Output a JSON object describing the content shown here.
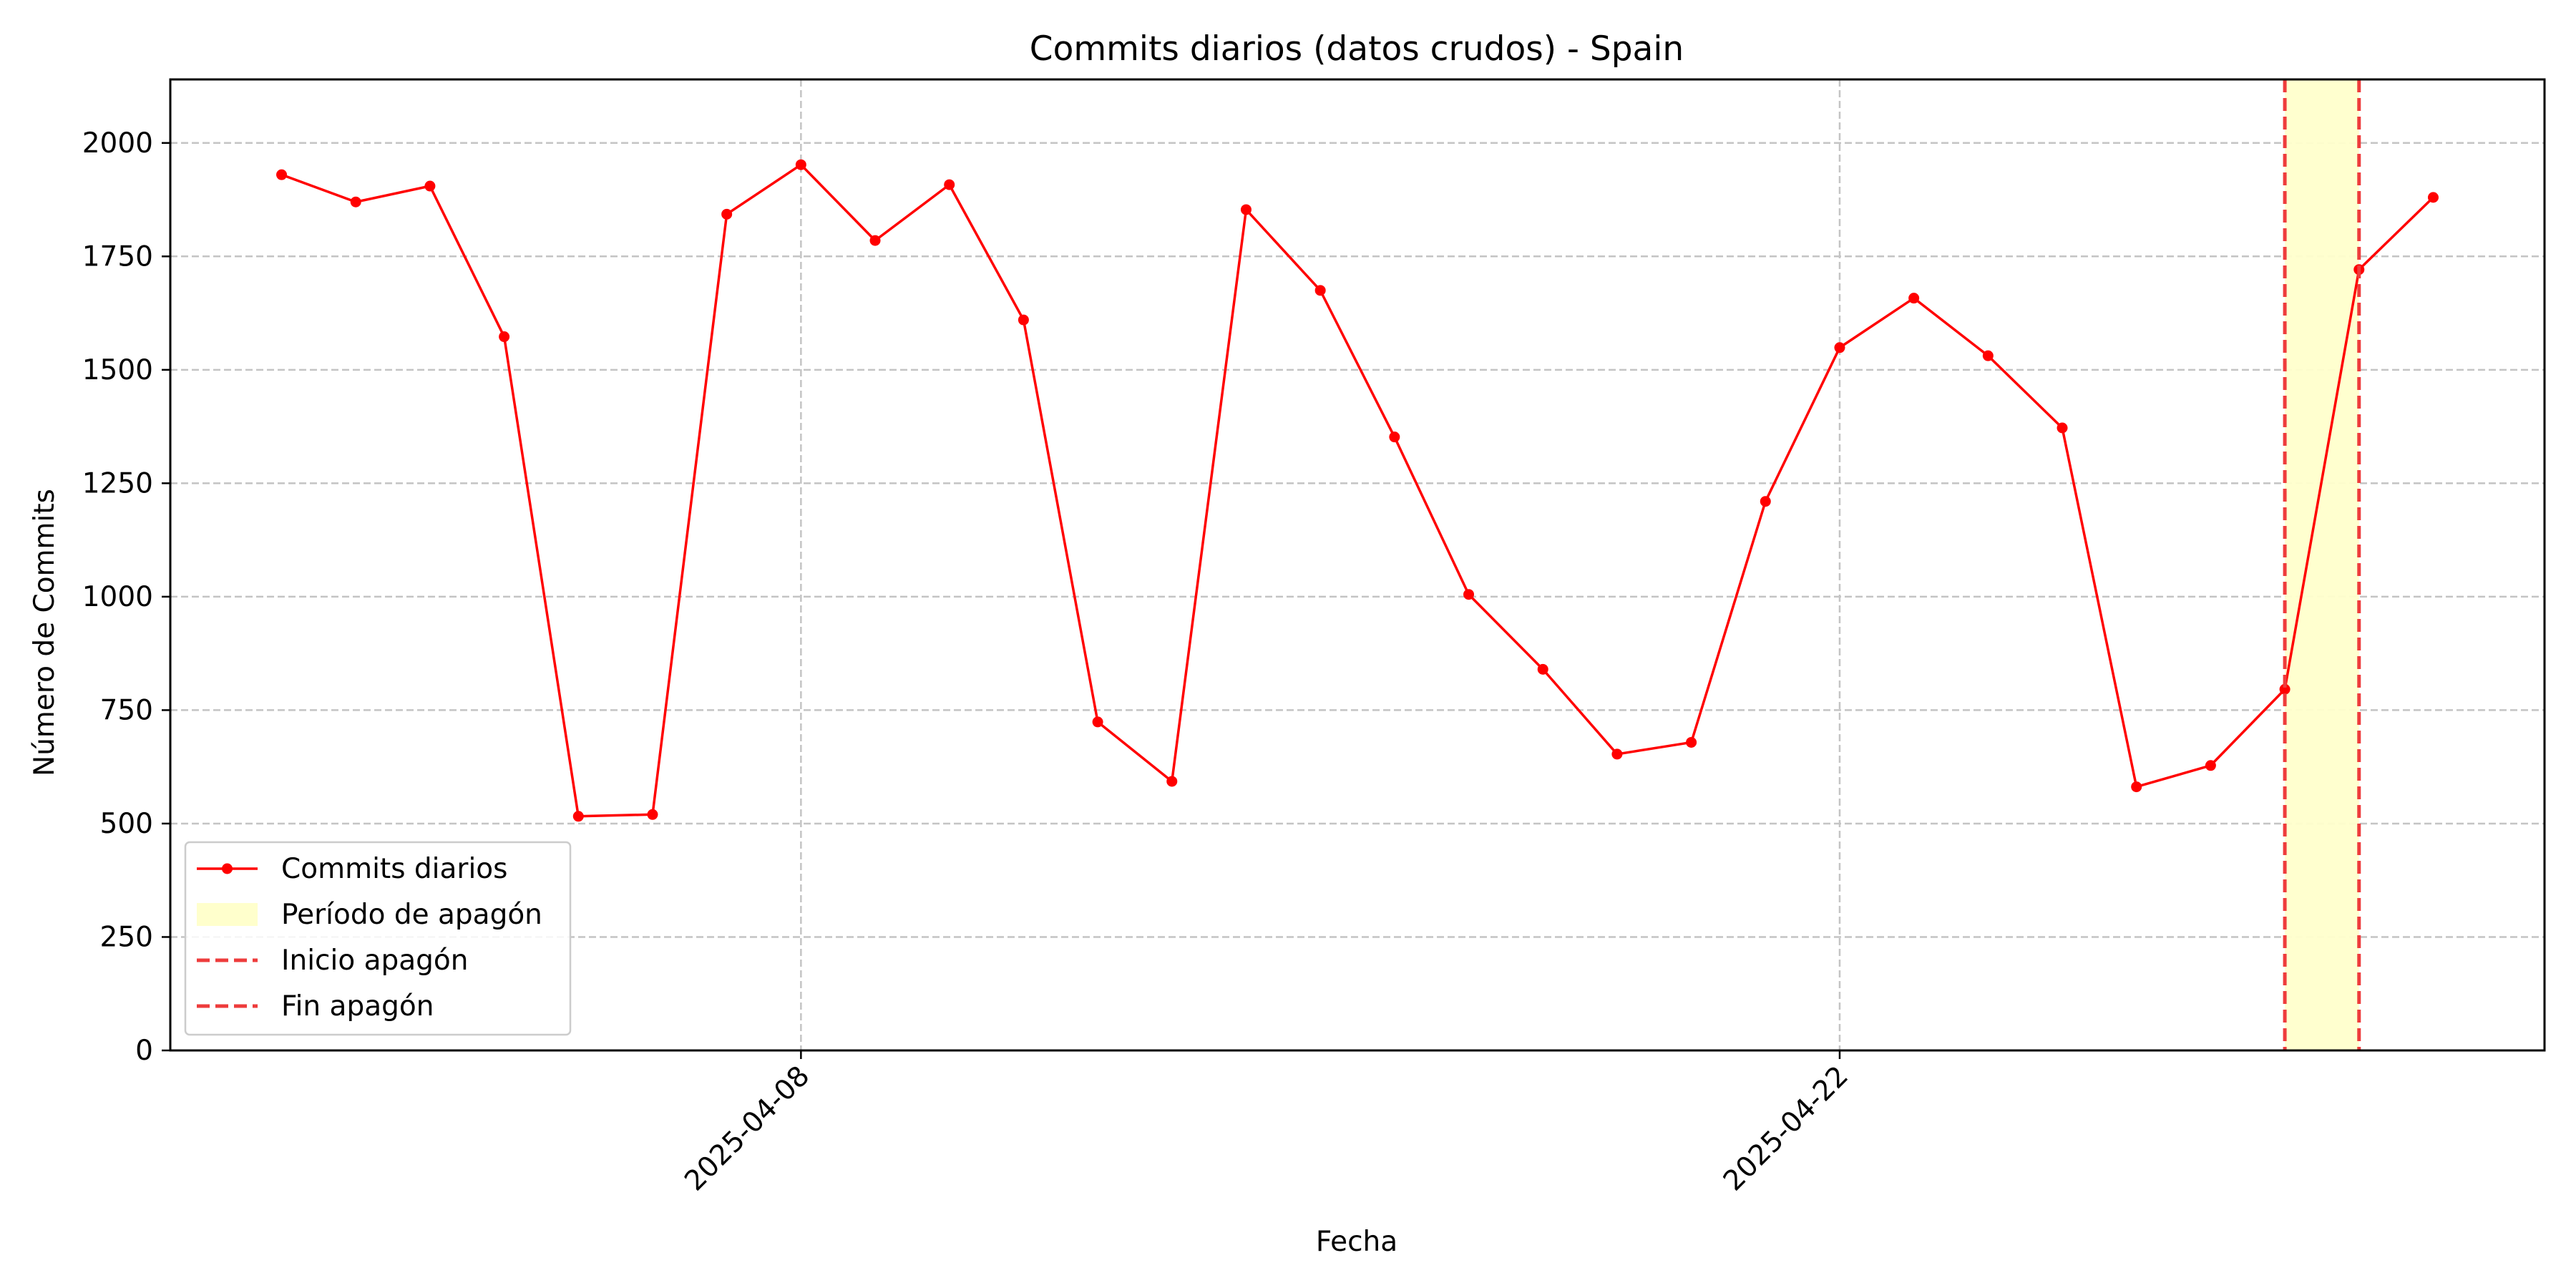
{
  "chart_data": {
    "type": "line",
    "title": "Commits diarios (datos crudos) - Spain",
    "xlabel": "Fecha",
    "ylabel": "Número de Commits",
    "x_start": "2025-04-01",
    "x": [
      "2025-04-01",
      "2025-04-02",
      "2025-04-03",
      "2025-04-04",
      "2025-04-05",
      "2025-04-06",
      "2025-04-07",
      "2025-04-08",
      "2025-04-09",
      "2025-04-10",
      "2025-04-11",
      "2025-04-12",
      "2025-04-13",
      "2025-04-14",
      "2025-04-15",
      "2025-04-16",
      "2025-04-17",
      "2025-04-18",
      "2025-04-19",
      "2025-04-20",
      "2025-04-21",
      "2025-04-22",
      "2025-04-23",
      "2025-04-24",
      "2025-04-25",
      "2025-04-26",
      "2025-04-27",
      "2025-04-28",
      "2025-04-29",
      "2025-04-30"
    ],
    "xlim": [
      "2025-03-30T12:00",
      "2025-05-01T12:00"
    ],
    "x_ticks": [
      "2025-04-08",
      "2025-04-22"
    ],
    "y_ticks": [
      0,
      250,
      500,
      750,
      1000,
      1250,
      1500,
      1750,
      2000
    ],
    "ylim": [
      0,
      2140
    ],
    "grid": true,
    "series": [
      {
        "name": "Commits diarios",
        "color": "#ff0000",
        "values": [
          1930,
          1870,
          1905,
          1573,
          516,
          520,
          1843,
          1952,
          1785,
          1908,
          1610,
          724,
          593,
          1853,
          1675,
          1352,
          1005,
          840,
          653,
          679,
          1210,
          1549,
          1658,
          1531,
          1372,
          581,
          628,
          796,
          1721,
          1880
        ]
      }
    ],
    "highlight": {
      "name": "Período de apagón",
      "start": "2025-04-28",
      "end": "2025-04-29",
      "fill": "#ffffcc"
    },
    "markers": [
      {
        "name": "Inicio apagón",
        "x": "2025-04-28",
        "color": "#ee3c3c"
      },
      {
        "name": "Fin apagón",
        "x": "2025-04-29",
        "color": "#ee3c3c"
      }
    ],
    "legend": {
      "position": "lower-left",
      "entries": [
        "Commits diarios",
        "Período de apagón",
        "Inicio apagón",
        "Fin apagón"
      ]
    }
  }
}
